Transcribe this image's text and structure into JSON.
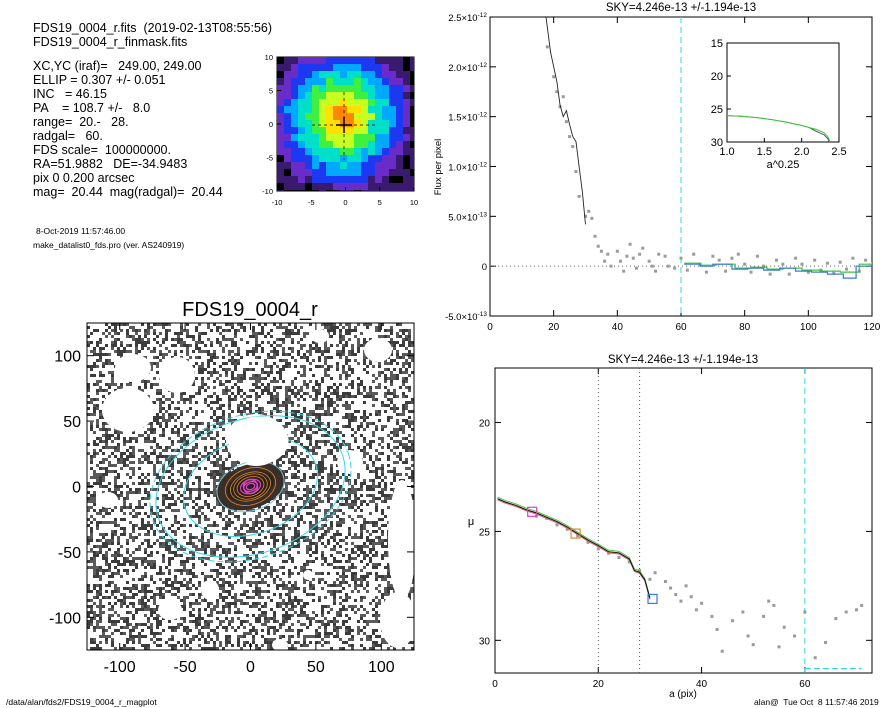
{
  "header": {
    "file_line": "FDS19_0004_r.fits  (2019-02-13T08:55:56)",
    "mask_line": "FDS19_0004_r_finmask.fits",
    "params": [
      "XC,YC (iraf)=   249.00, 249.00",
      "ELLIP = 0.307 +/- 0.051",
      "INC   = 46.15",
      "PA    = 108.7 +/-   8.0",
      "range=  20.-   28.",
      "radgal=   60.",
      "FDS scale=  100000000.",
      "RA=51.9882   DE=-34.9483",
      "pix 0 0.200 arcsec",
      "mag=  20.44  mag(radgal)=  20.44"
    ],
    "date_line": "8-Oct-2019 11:57:46.00",
    "program_line": "make_datalist0_fds.pro (ver. AS240919)"
  },
  "footer": {
    "path": "/data/alan/fds2/FDS19_0004_r_magplot",
    "user": "alan@  Tue Oct  8 11:57:46 2019"
  },
  "colors": {
    "cyan": "#35d6e6",
    "magenta": "#e040c8",
    "orange": "#e08a2a",
    "green": "#3ac43a",
    "blue": "#3878e0",
    "gray": "#9a9a9a"
  },
  "chart_data": [
    {
      "id": "thumbnail",
      "type": "heatmap",
      "xticks": [
        "-10",
        "-5",
        "0",
        "5",
        "10"
      ],
      "yticks": [
        "10",
        "5",
        "0",
        "-5",
        "-10"
      ],
      "xlim": [
        -10,
        10
      ],
      "ylim": [
        -10,
        10
      ],
      "palette": [
        "#000000",
        "#3a1a6e",
        "#6a2cc8",
        "#1c38f0",
        "#00a8ff",
        "#00e0c8",
        "#40f040",
        "#c8ff20",
        "#ffe000",
        "#ff8800"
      ]
    },
    {
      "id": "image",
      "type": "scatter",
      "title": "FDS19_0004_r",
      "xticks": [
        "-100",
        "-50",
        "0",
        "50",
        "100"
      ],
      "yticks": [
        "100",
        "50",
        "0",
        "-50",
        "-100"
      ],
      "xlim": [
        -125,
        125
      ],
      "ylim": [
        -125,
        125
      ],
      "ellipse_axes": [
        [
          120,
          83
        ],
        [
          113,
          78
        ],
        [
          80,
          55
        ],
        [
          40,
          28
        ],
        [
          30,
          21
        ],
        [
          24,
          16
        ],
        [
          20,
          14
        ],
        [
          16,
          11
        ],
        [
          12,
          8
        ],
        [
          8,
          5.5
        ],
        [
          5,
          3.5
        ]
      ],
      "pa_deg": 108.7
    },
    {
      "id": "flux-profile",
      "type": "line",
      "title": "SKY=4.246e-13 +/-1.194e-13",
      "ylabel": "Flux per pixel",
      "xlim": [
        0,
        120
      ],
      "ylim": [
        -5e-13,
        2.5e-12
      ],
      "xticks": [
        "0",
        "20",
        "40",
        "60",
        "80",
        "100",
        "120"
      ],
      "yticks": [
        {
          "m": "-5.0",
          "e": "-13",
          "v": -5e-13
        },
        {
          "m": "0",
          "e": "",
          "v": 0
        },
        {
          "m": "5.0",
          "e": "-13",
          "v": 5e-13
        },
        {
          "m": "1.0",
          "e": "-12",
          "v": 1e-12
        },
        {
          "m": "1.5",
          "e": "-12",
          "v": 1.5e-12
        },
        {
          "m": "2.0",
          "e": "-12",
          "v": 2e-12
        },
        {
          "m": "2.5",
          "e": "-12",
          "v": 2.5e-12
        }
      ],
      "vline": 60,
      "profile": [
        [
          17.6,
          2.5e-12
        ],
        [
          19,
          2.15e-12
        ],
        [
          20,
          2e-12
        ],
        [
          21,
          1.85e-12
        ],
        [
          22,
          1.62e-12
        ],
        [
          23,
          1.5e-12
        ],
        [
          24,
          1.56e-12
        ],
        [
          25,
          1.42e-12
        ],
        [
          26,
          1.3e-12
        ],
        [
          27,
          1.25e-12
        ],
        [
          28,
          1e-12
        ],
        [
          29,
          7.5e-13
        ],
        [
          30,
          4.2e-13
        ]
      ],
      "points": [
        [
          18,
          2.2e-12
        ],
        [
          20,
          1.9e-12
        ],
        [
          21,
          1.75e-12
        ],
        [
          22,
          1.6e-12
        ],
        [
          23,
          1.7e-12
        ],
        [
          24,
          1.45e-12
        ],
        [
          25,
          1.3e-12
        ],
        [
          26,
          1.2e-12
        ],
        [
          27,
          9.5e-13
        ],
        [
          28,
          7e-13
        ],
        [
          30,
          5e-13
        ],
        [
          31,
          5.5e-13
        ],
        [
          32,
          4.8e-13
        ],
        [
          33,
          3e-13
        ],
        [
          34,
          2e-13
        ],
        [
          35,
          1.5e-13
        ],
        [
          36,
          5e-14
        ],
        [
          37,
          1.2e-13
        ],
        [
          38,
          0.0
        ],
        [
          40,
          1.5e-13
        ],
        [
          41,
          5e-14
        ],
        [
          42,
          -5e-14
        ],
        [
          43,
          1e-13
        ],
        [
          44,
          2.2e-13
        ],
        [
          45,
          8e-14
        ],
        [
          46,
          -2e-14
        ],
        [
          47,
          1.2e-13
        ],
        [
          48,
          1.8e-13
        ],
        [
          50,
          5e-14
        ],
        [
          51,
          0.0
        ],
        [
          52,
          -5e-14
        ],
        [
          53,
          1.2e-13
        ],
        [
          55,
          1e-13
        ],
        [
          56,
          0.0
        ],
        [
          58,
          -2e-14
        ],
        [
          60,
          8e-14
        ],
        [
          62,
          -4e-14
        ],
        [
          64,
          1.2e-13
        ],
        [
          66,
          2e-14
        ],
        [
          68,
          -6e-14
        ],
        [
          70,
          1e-13
        ],
        [
          72,
          6e-14
        ],
        [
          74,
          -5e-14
        ],
        [
          76,
          8e-14
        ],
        [
          78,
          1.2e-13
        ],
        [
          80,
          2e-14
        ],
        [
          82,
          -6e-14
        ],
        [
          84,
          1e-13
        ],
        [
          86,
          0.0
        ],
        [
          88,
          -8e-14
        ],
        [
          90,
          6e-14
        ],
        [
          92,
          2e-14
        ],
        [
          94,
          -8e-14
        ],
        [
          96,
          8e-14
        ],
        [
          98,
          2e-14
        ],
        [
          100,
          -6e-14
        ],
        [
          102,
          6e-14
        ],
        [
          104,
          -4e-14
        ],
        [
          106,
          3e-14
        ],
        [
          108,
          -7e-14
        ],
        [
          110,
          4e-14
        ],
        [
          112,
          -3e-14
        ],
        [
          114,
          8e-14
        ],
        [
          116,
          -5e-14
        ],
        [
          118,
          6e-14
        ]
      ],
      "steps_blue": [
        [
          61,
          2e-14
        ],
        [
          66,
          0.0
        ],
        [
          70,
          2e-14
        ],
        [
          76,
          -3e-14
        ],
        [
          81,
          -2e-14
        ],
        [
          86,
          -4e-14
        ],
        [
          91,
          -2e-14
        ],
        [
          96,
          -5e-14
        ],
        [
          101,
          -6e-14
        ],
        [
          106,
          -8e-14
        ],
        [
          111,
          -1.2e-13
        ],
        [
          115,
          0.0
        ],
        [
          120,
          0.0
        ]
      ],
      "steps_green": [
        [
          61,
          3e-14
        ],
        [
          66,
          1e-14
        ],
        [
          71,
          2e-14
        ],
        [
          77,
          -2e-14
        ],
        [
          82,
          -1e-14
        ],
        [
          87,
          -3e-14
        ],
        [
          92,
          -2e-14
        ],
        [
          98,
          -4e-14
        ],
        [
          104,
          -5e-14
        ],
        [
          110,
          -6e-14
        ],
        [
          116,
          2e-14
        ],
        [
          120,
          4e-14
        ]
      ],
      "inset": {
        "xlabel": "a^0.25",
        "xlim": [
          1.0,
          2.5
        ],
        "ylim": [
          30,
          15
        ],
        "xticks": [
          "1.0",
          "1.5",
          "2.0",
          "2.5"
        ],
        "yticks": [
          "15",
          "20",
          "25",
          "30"
        ],
        "curve": [
          [
            1.0,
            26.0
          ],
          [
            1.2,
            26.1
          ],
          [
            1.4,
            26.3
          ],
          [
            1.6,
            26.6
          ],
          [
            1.8,
            27.0
          ],
          [
            2.0,
            27.5
          ],
          [
            2.1,
            27.8
          ],
          [
            2.2,
            28.1
          ],
          [
            2.3,
            28.6
          ],
          [
            2.35,
            29.2
          ],
          [
            2.38,
            30.0
          ]
        ]
      }
    },
    {
      "id": "sb-profile",
      "type": "line",
      "title": "SKY=4.246e-13 +/-1.194e-13",
      "xlabel": "a (pix)",
      "ylabel": "μ",
      "xlim": [
        0,
        73
      ],
      "ylim": [
        31.5,
        17.5
      ],
      "xticks": [
        "0",
        "20",
        "40",
        "60"
      ],
      "yticks": [
        "20",
        "25",
        "30"
      ],
      "vlines_dotted": [
        20,
        28
      ],
      "vline_dashed": 60,
      "hline_dashed": {
        "y": 31.3,
        "x0": 60,
        "x1": 71
      },
      "profile": [
        [
          0.5,
          23.5
        ],
        [
          2,
          23.65
        ],
        [
          4,
          23.8
        ],
        [
          6,
          24.0
        ],
        [
          8,
          24.15
        ],
        [
          10,
          24.35
        ],
        [
          12,
          24.55
        ],
        [
          14,
          24.8
        ],
        [
          16,
          25.1
        ],
        [
          18,
          25.4
        ],
        [
          20,
          25.65
        ],
        [
          22,
          25.85
        ],
        [
          24,
          26.05
        ],
        [
          26,
          26.3
        ],
        [
          27,
          26.7
        ],
        [
          28,
          26.9
        ],
        [
          29,
          27.3
        ],
        [
          30,
          28.0
        ]
      ],
      "points": [
        [
          8,
          24.3
        ],
        [
          10,
          24.4
        ],
        [
          12,
          24.7
        ],
        [
          14,
          24.9
        ],
        [
          16,
          25.2
        ],
        [
          18,
          25.5
        ],
        [
          20,
          25.8
        ],
        [
          22,
          26.0
        ],
        [
          24,
          26.2
        ],
        [
          26,
          26.4
        ],
        [
          28,
          26.8
        ],
        [
          30,
          27.2
        ],
        [
          31,
          26.9
        ],
        [
          33,
          27.3
        ],
        [
          34,
          27.6
        ],
        [
          35,
          27.9
        ],
        [
          36,
          28.2
        ],
        [
          37,
          27.5
        ],
        [
          38,
          28.0
        ],
        [
          39,
          28.6
        ],
        [
          40,
          28.3
        ],
        [
          42,
          28.9
        ],
        [
          43,
          29.5
        ],
        [
          44,
          30.5
        ],
        [
          46,
          29.1
        ],
        [
          48,
          28.7
        ],
        [
          49,
          29.8
        ],
        [
          50,
          30.2
        ],
        [
          52,
          28.9
        ],
        [
          53,
          28.2
        ],
        [
          54,
          28.4
        ],
        [
          55,
          30.3
        ],
        [
          56,
          29.4
        ],
        [
          58,
          29.8
        ],
        [
          60,
          28.7
        ],
        [
          62,
          30.8
        ],
        [
          64,
          30.1
        ],
        [
          66,
          29.0
        ],
        [
          68,
          28.7
        ],
        [
          70,
          28.6
        ],
        [
          71,
          28.4
        ]
      ],
      "markers": [
        {
          "x": 7.2,
          "y": 24.1,
          "color": "#e040c8"
        },
        {
          "x": 15.6,
          "y": 25.1,
          "color": "#e08a2a"
        },
        {
          "x": 30.5,
          "y": 28.1,
          "color": "#3878e0"
        }
      ]
    }
  ]
}
